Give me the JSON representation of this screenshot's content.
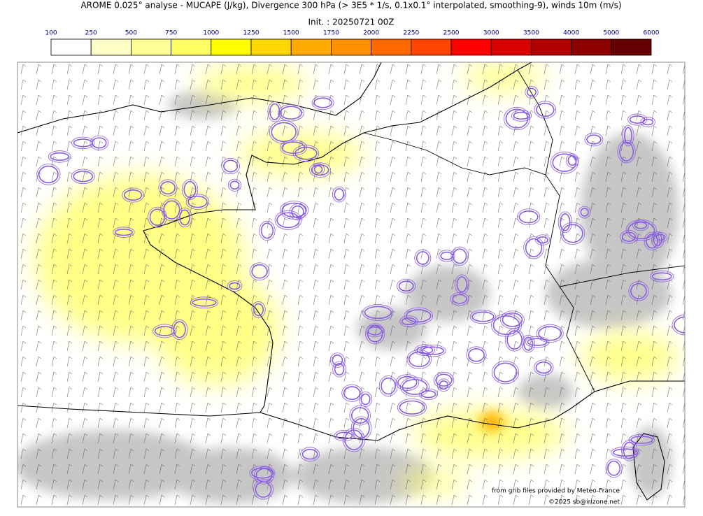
{
  "title": "AROME 0.025° analyse - MUCAPE (J/kg), Divergence 300 hPa (> 3E5 * 1/s, 0.1x0.1° interpolated, smoothing-9), winds 10m (m/s)",
  "init": "Init. : 20250721 00Z",
  "colorbar": {
    "ticks": [
      100,
      250,
      500,
      750,
      1000,
      1250,
      1500,
      1750,
      2000,
      2250,
      2500,
      3000,
      3500,
      4000,
      5000,
      6000
    ],
    "colors": [
      "#ffffff",
      "#ffffc8",
      "#ffff96",
      "#ffff64",
      "#ffff00",
      "#ffd700",
      "#ffaa00",
      "#ff9000",
      "#ff6a00",
      "#ff4500",
      "#ff0000",
      "#d80000",
      "#b00000",
      "#8c0000",
      "#640000"
    ]
  },
  "credits": [
    "from grib files provided by Meteo-France",
    "©2025 sb@irizone.net"
  ]
}
